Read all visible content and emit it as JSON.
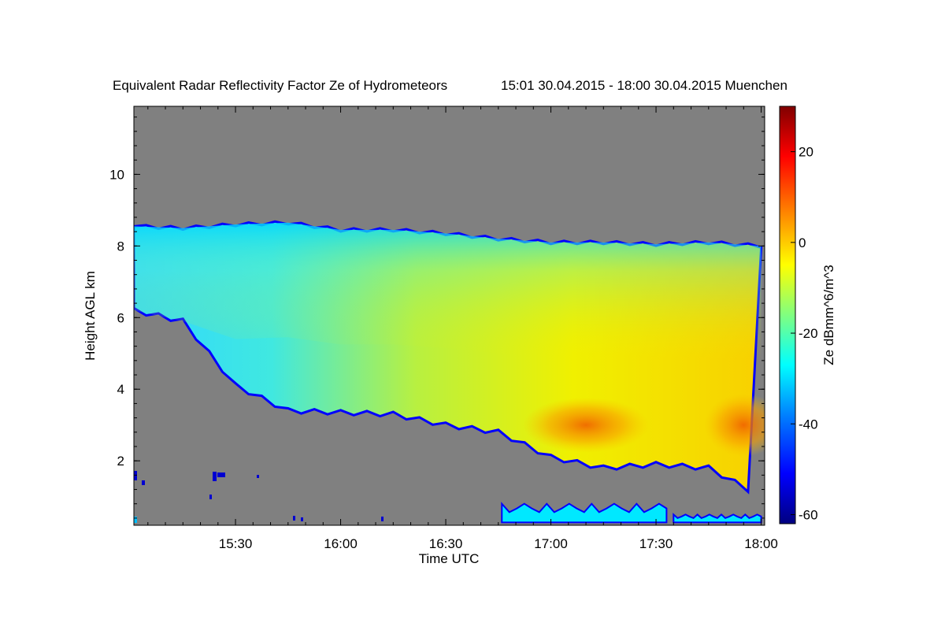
{
  "chart_data": {
    "type": "heatmap",
    "title": "Equivalent Radar Reflectivity Factor Ze of Hydrometeors",
    "subtitle": "15:01 30.04.2015 - 18:00 30.04.2015 Muenchen",
    "xlabel": "Time UTC",
    "ylabel": "Height AGL km",
    "colorbar_label": "Ze dBmm^6/m^3",
    "x_range_minutes_utc": [
      901,
      1081
    ],
    "y_range_km": [
      0.2,
      11.9
    ],
    "x_ticks": [
      {
        "minute": 930,
        "label": "15:30"
      },
      {
        "minute": 960,
        "label": "16:00"
      },
      {
        "minute": 990,
        "label": "16:30"
      },
      {
        "minute": 1020,
        "label": "17:00"
      },
      {
        "minute": 1050,
        "label": "17:30"
      },
      {
        "minute": 1080,
        "label": "18:00"
      }
    ],
    "y_ticks": [
      {
        "value": 2,
        "label": "2"
      },
      {
        "value": 4,
        "label": "4"
      },
      {
        "value": 6,
        "label": "6"
      },
      {
        "value": 8,
        "label": "8"
      },
      {
        "value": 10,
        "label": "10"
      }
    ],
    "colorbar_range": [
      -62,
      30
    ],
    "colorbar_ticks": [
      {
        "value": 20,
        "label": "20"
      },
      {
        "value": 0,
        "label": "0"
      },
      {
        "value": -20,
        "label": "-20"
      },
      {
        "value": -40,
        "label": "-40"
      },
      {
        "value": -60,
        "label": "-60"
      }
    ],
    "background_color": "#808080",
    "colormap": [
      "#000080",
      "#0000ff",
      "#0080ff",
      "#00ffff",
      "#80ff80",
      "#ffff00",
      "#ff8000",
      "#ff0000",
      "#800000"
    ],
    "echo_times": [
      "15:01",
      "15:15",
      "15:30",
      "15:45",
      "16:00",
      "16:15",
      "16:30",
      "16:45",
      "17:00",
      "17:15",
      "17:30",
      "17:45",
      "18:00"
    ],
    "echo_top_km": [
      8.55,
      8.5,
      8.6,
      8.65,
      8.45,
      8.45,
      8.35,
      8.2,
      8.1,
      8.1,
      8.05,
      8.1,
      8.0
    ],
    "echo_base_km": [
      6.2,
      5.9,
      4.1,
      3.4,
      3.35,
      3.3,
      3.0,
      2.8,
      2.1,
      1.8,
      1.9,
      1.8,
      1.0
    ],
    "peak_ze_dbz": [
      -28,
      -25,
      -22,
      -18,
      -15,
      -12,
      -10,
      -5,
      4,
      6,
      3,
      8,
      10
    ],
    "low_echo_patches": [
      {
        "start": "16:46",
        "end": "17:33",
        "top_km": 0.8,
        "ze_dbz": -30
      },
      {
        "start": "17:35",
        "end": "18:00",
        "top_km": 0.5,
        "ze_dbz": -32
      }
    ]
  }
}
